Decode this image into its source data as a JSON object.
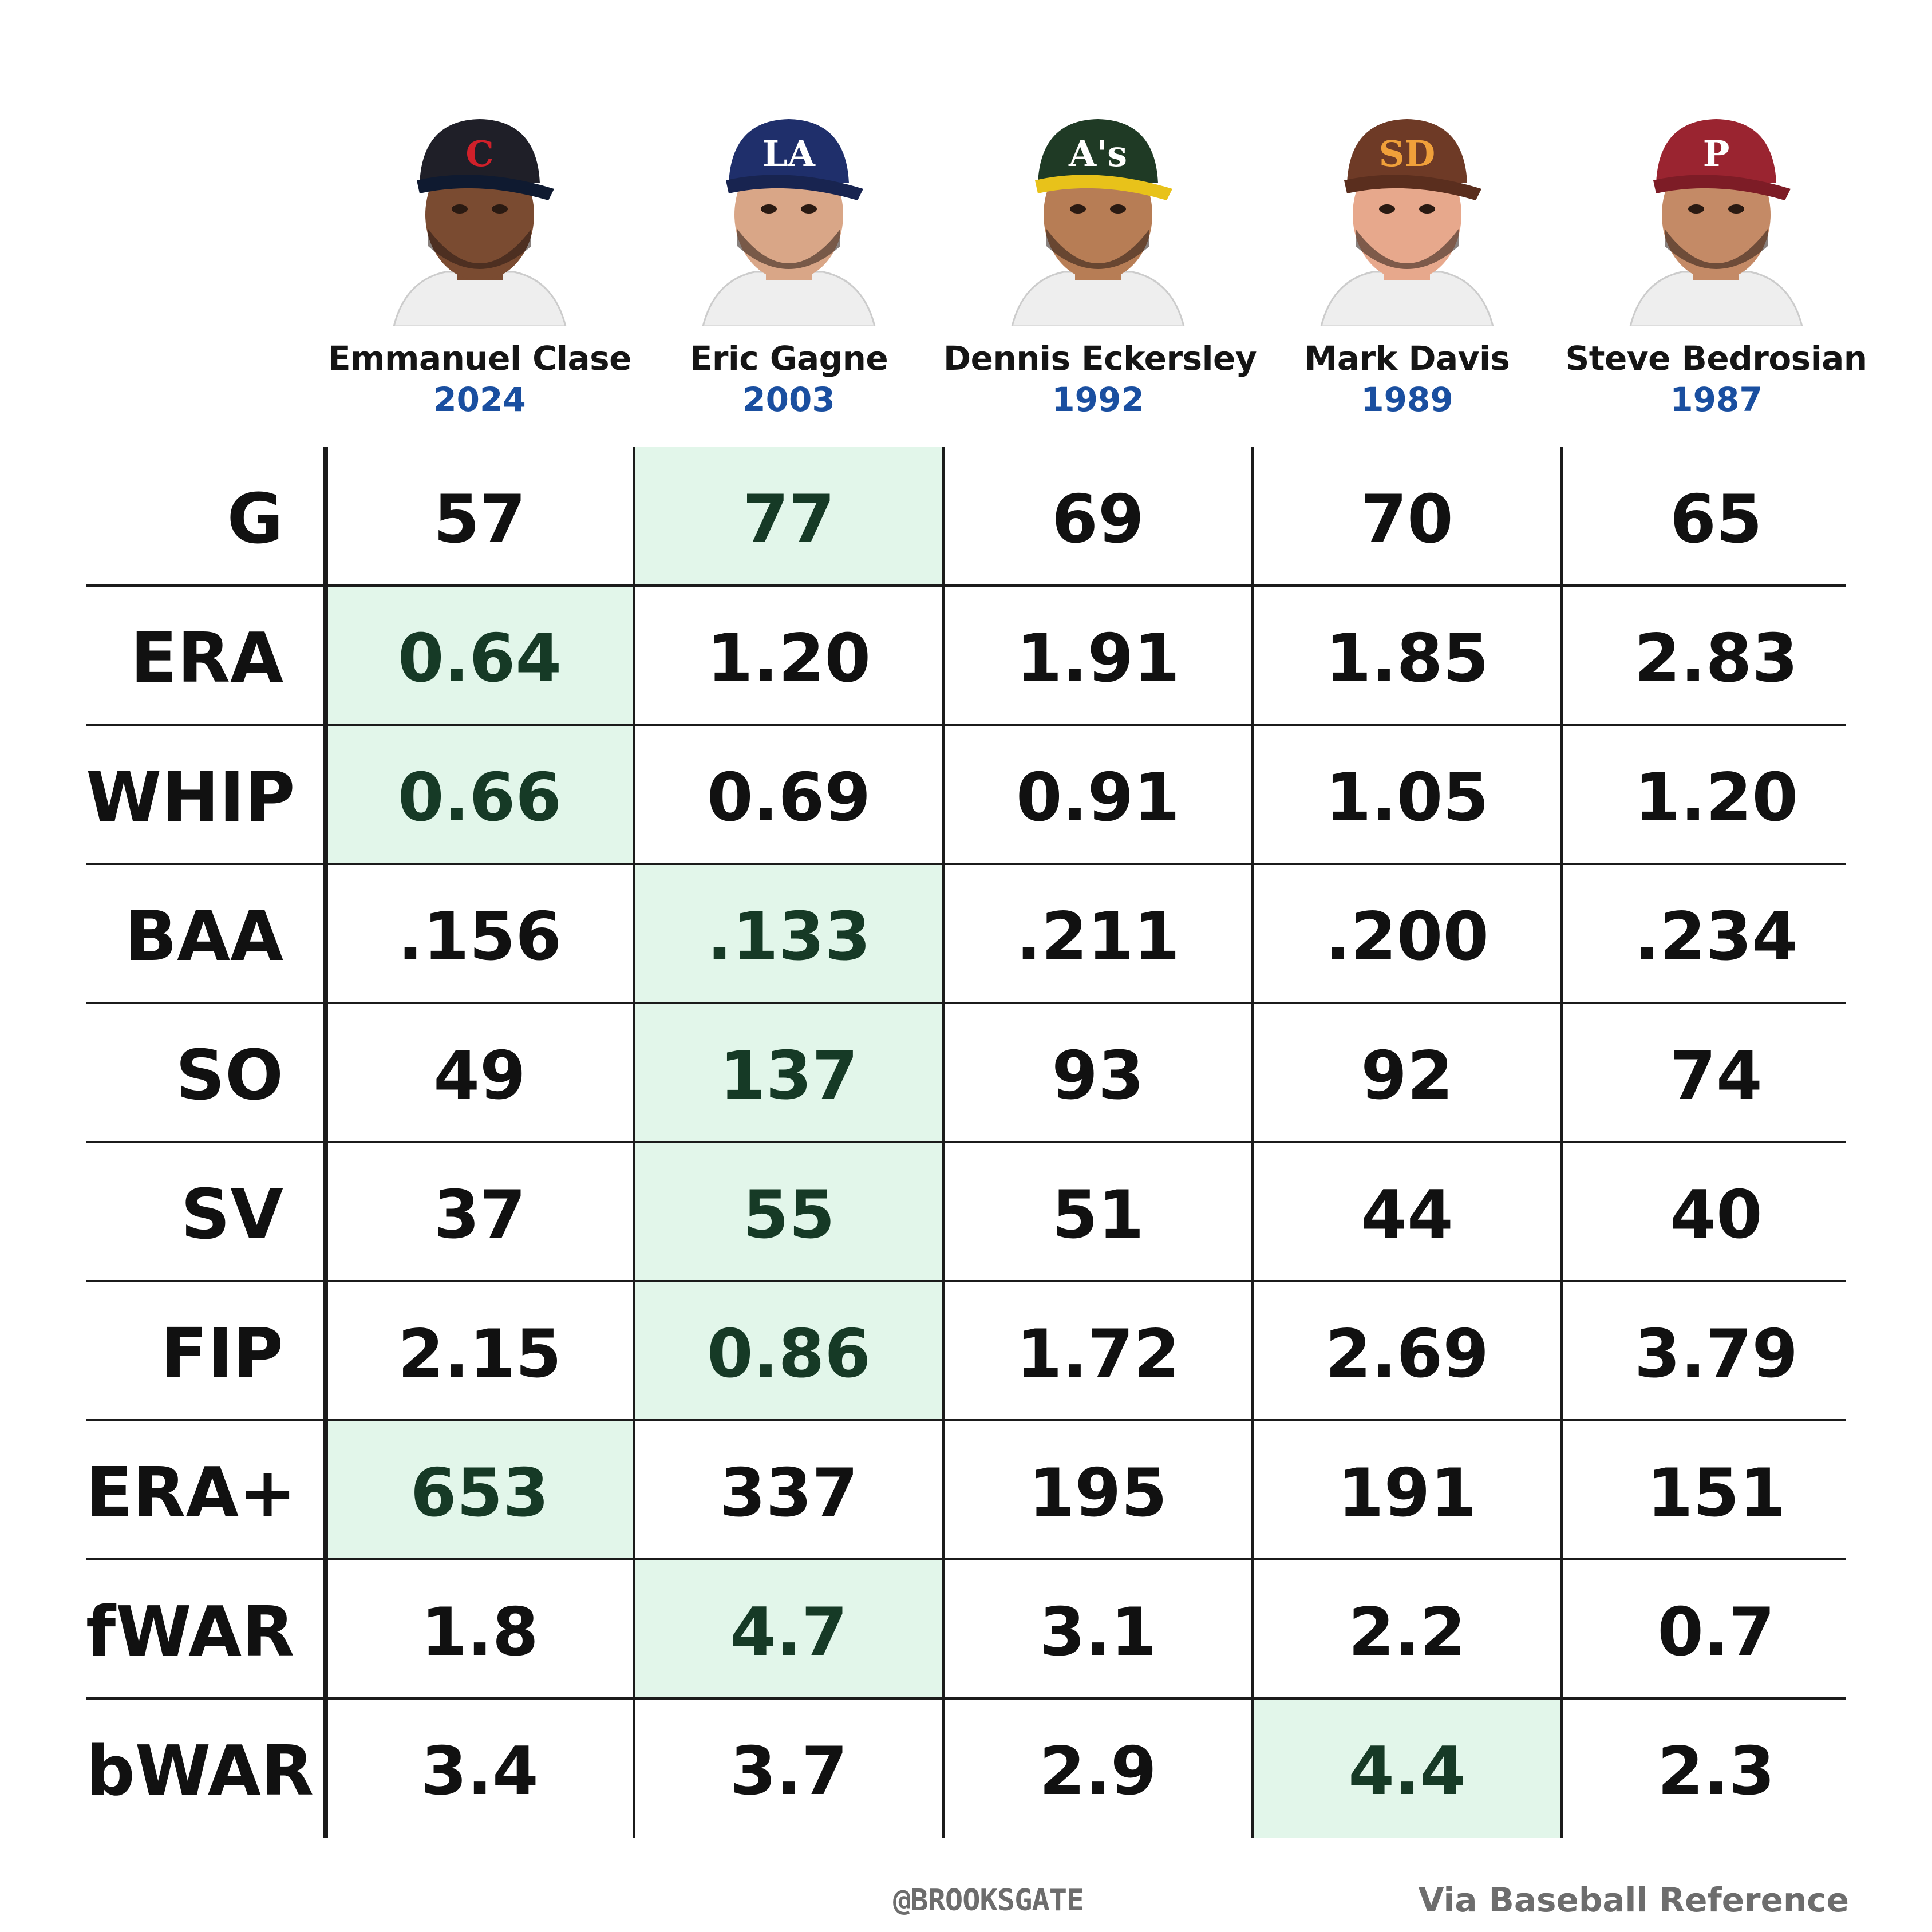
{
  "players": [
    {
      "name": "Emmanuel Clase",
      "year": "2024",
      "cap_color": "#1f1f28",
      "cap_letter": "C",
      "letter_color": "#d0202a",
      "brim": "#0f1a30",
      "skin": "#7a4b31"
    },
    {
      "name": "Eric Gagne",
      "year": "2003",
      "cap_color": "#1f2f6b",
      "cap_letter": "LA",
      "letter_color": "#ffffff",
      "brim": "#182450",
      "skin": "#d9a687"
    },
    {
      "name": "Dennis Eckersley",
      "year": "1992",
      "cap_color": "#1f3a25",
      "cap_letter": "A's",
      "letter_color": "#ffffff",
      "brim": "#e8c21a",
      "skin": "#b77d55"
    },
    {
      "name": "Mark Davis",
      "year": "1989",
      "cap_color": "#6e3a26",
      "cap_letter": "SD",
      "letter_color": "#f0a03a",
      "brim": "#5a2e1e",
      "skin": "#e7a88c"
    },
    {
      "name": "Steve Bedrosian",
      "year": "1987",
      "cap_color": "#9a2430",
      "cap_letter": "P",
      "letter_color": "#ffffff",
      "brim": "#7d1c26",
      "skin": "#c48a66"
    }
  ],
  "chart_data": {
    "type": "table",
    "columns": [
      "Emmanuel Clase 2024",
      "Eric Gagne 2003",
      "Dennis Eckersley 1992",
      "Mark Davis 1989",
      "Steve Bedrosian 1987"
    ],
    "rows": [
      {
        "stat": "G",
        "values": [
          "57",
          "77",
          "69",
          "70",
          "65"
        ],
        "best": 1
      },
      {
        "stat": "ERA",
        "values": [
          "0.64",
          "1.20",
          "1.91",
          "1.85",
          "2.83"
        ],
        "best": 0
      },
      {
        "stat": "WHIP",
        "values": [
          "0.66",
          "0.69",
          "0.91",
          "1.05",
          "1.20"
        ],
        "best": 0
      },
      {
        "stat": "BAA",
        "values": [
          ".156",
          ".133",
          ".211",
          ".200",
          ".234"
        ],
        "best": 1
      },
      {
        "stat": "SO",
        "values": [
          "49",
          "137",
          "93",
          "92",
          "74"
        ],
        "best": 1
      },
      {
        "stat": "SV",
        "values": [
          "37",
          "55",
          "51",
          "44",
          "40"
        ],
        "best": 1
      },
      {
        "stat": "FIP",
        "values": [
          "2.15",
          "0.86",
          "1.72",
          "2.69",
          "3.79"
        ],
        "best": 1
      },
      {
        "stat": "ERA+",
        "values": [
          "653",
          "337",
          "195",
          "191",
          "151"
        ],
        "best": 0
      },
      {
        "stat": "fWAR",
        "values": [
          "1.8",
          "4.7",
          "3.1",
          "2.2",
          "0.7"
        ],
        "best": 1
      },
      {
        "stat": "bWAR",
        "values": [
          "3.4",
          "3.7",
          "2.9",
          "4.4",
          "2.3"
        ],
        "best": 3
      }
    ],
    "highlight_color": "#e2f6ea"
  },
  "footer": {
    "handle": "@BROOKSGATE",
    "source": "Via Baseball Reference"
  }
}
